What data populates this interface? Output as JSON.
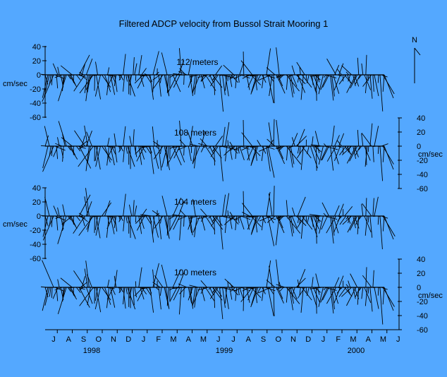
{
  "chart_data": {
    "type": "stick-plot (current vector time series)",
    "title": "Filtered ADCP velocity from Bussol Strait Mooring 1",
    "units": "cm/sec",
    "north_label": "N",
    "y_ticks": [
      40,
      20,
      0,
      -20,
      -40,
      -60
    ],
    "ylim": [
      -60,
      40
    ],
    "months": [
      "J",
      "A",
      "S",
      "O",
      "N",
      "D",
      "J",
      "F",
      "M",
      "A",
      "M",
      "J",
      "J",
      "A",
      "S",
      "O",
      "N",
      "D",
      "J",
      "F",
      "M",
      "A",
      "M",
      "J"
    ],
    "years": [
      "1998",
      "1999",
      "2000"
    ],
    "panels": [
      {
        "label": "112 meters"
      },
      {
        "label": "108 meters"
      },
      {
        "label": "104 meters"
      },
      {
        "label": "100 meters"
      }
    ]
  },
  "style": {
    "background": "#54a8ff",
    "ink": "#000000"
  }
}
